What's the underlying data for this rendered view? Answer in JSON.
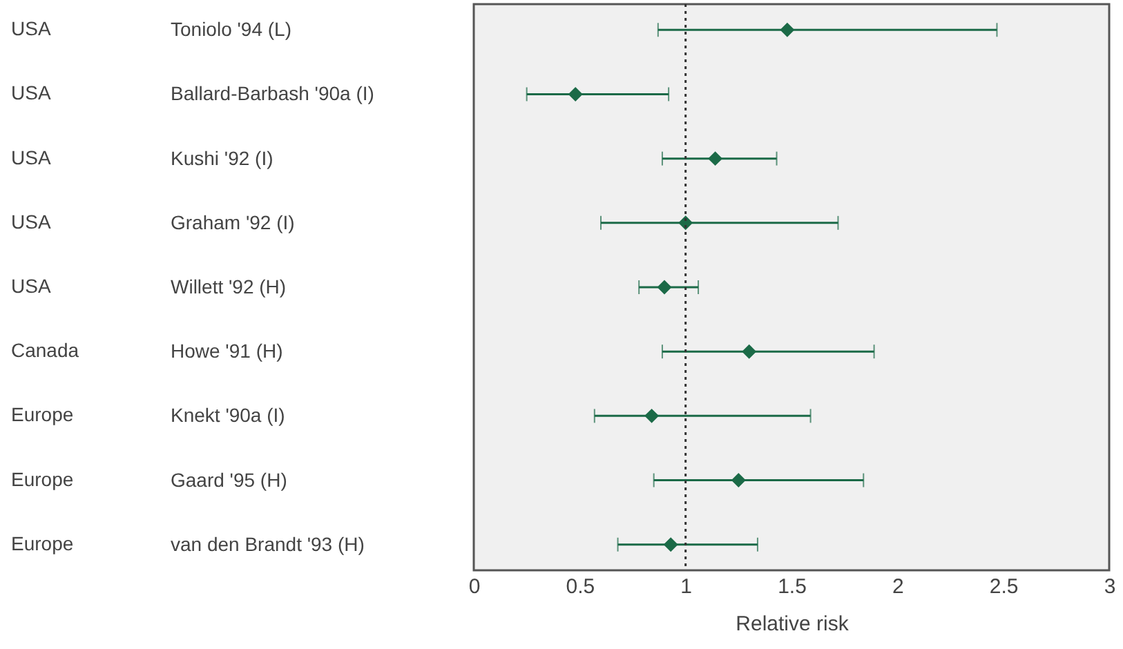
{
  "chart_data": {
    "type": "scatter",
    "orientation": "horizontal",
    "categories": [
      "Toniolo '94 (L)",
      "Ballard-Barbash '90a (I)",
      "Kushi '92 (I)",
      "Graham '92 (I)",
      "Willett '92 (H)",
      "Howe '91 (H)",
      "Knekt '90a (I)",
      "Gaard '95 (H)",
      "van den Brandt '93 (H)"
    ],
    "y2_categories": [
      "USA",
      "USA",
      "USA",
      "USA",
      "USA",
      "Canada",
      "Europe",
      "Europe",
      "Europe"
    ],
    "values": [
      1.48,
      0.48,
      1.14,
      1.0,
      0.9,
      1.3,
      0.84,
      1.25,
      0.93
    ],
    "errors": [
      [
        0.87,
        2.47
      ],
      [
        0.25,
        0.92
      ],
      [
        0.89,
        1.43
      ],
      [
        0.6,
        1.72
      ],
      [
        0.78,
        1.06
      ],
      [
        0.89,
        1.89
      ],
      [
        0.57,
        1.59
      ],
      [
        0.85,
        1.84
      ],
      [
        0.68,
        1.34
      ]
    ],
    "color": "#1b6a47",
    "marker": "diamond",
    "grid": false,
    "xlim": [
      0,
      3
    ],
    "xticks": [
      0,
      0.5,
      1,
      1.5,
      2,
      2.5,
      3
    ],
    "xlabel": "Relative risk",
    "ref_lines": [
      {
        "axis": "x",
        "value": 1,
        "line_style": "dotted",
        "color": "#333333"
      }
    ]
  }
}
